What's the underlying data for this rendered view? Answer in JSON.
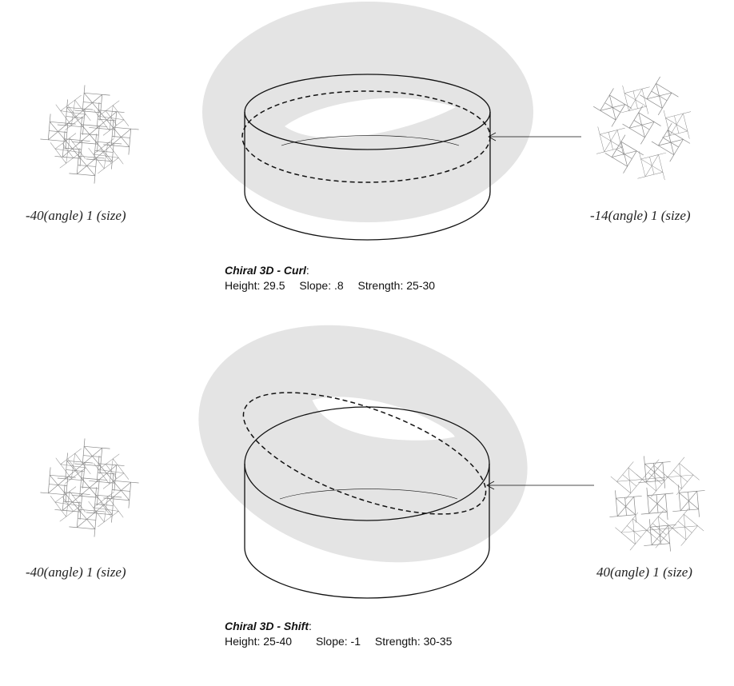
{
  "panels": [
    {
      "left_label": "-40(angle) 1 (size)",
      "right_label": "-14(angle) 1 (size)",
      "title": "Chiral 3D - Curl",
      "colon": ":",
      "params": [
        "Height: 29.5",
        "Slope: .8",
        "Strength: 25-30"
      ]
    },
    {
      "left_label": "-40(angle) 1 (size)",
      "right_label": "40(angle) 1 (size)",
      "title": "Chiral 3D - Shift",
      "colon": ":",
      "params": [
        "Height: 25-40",
        "Slope: -1",
        "Strength: 30-35"
      ]
    }
  ],
  "colors": {
    "halo": "#e4e4e4",
    "stroke": "#111111",
    "lattice": "#8a8a8a"
  }
}
